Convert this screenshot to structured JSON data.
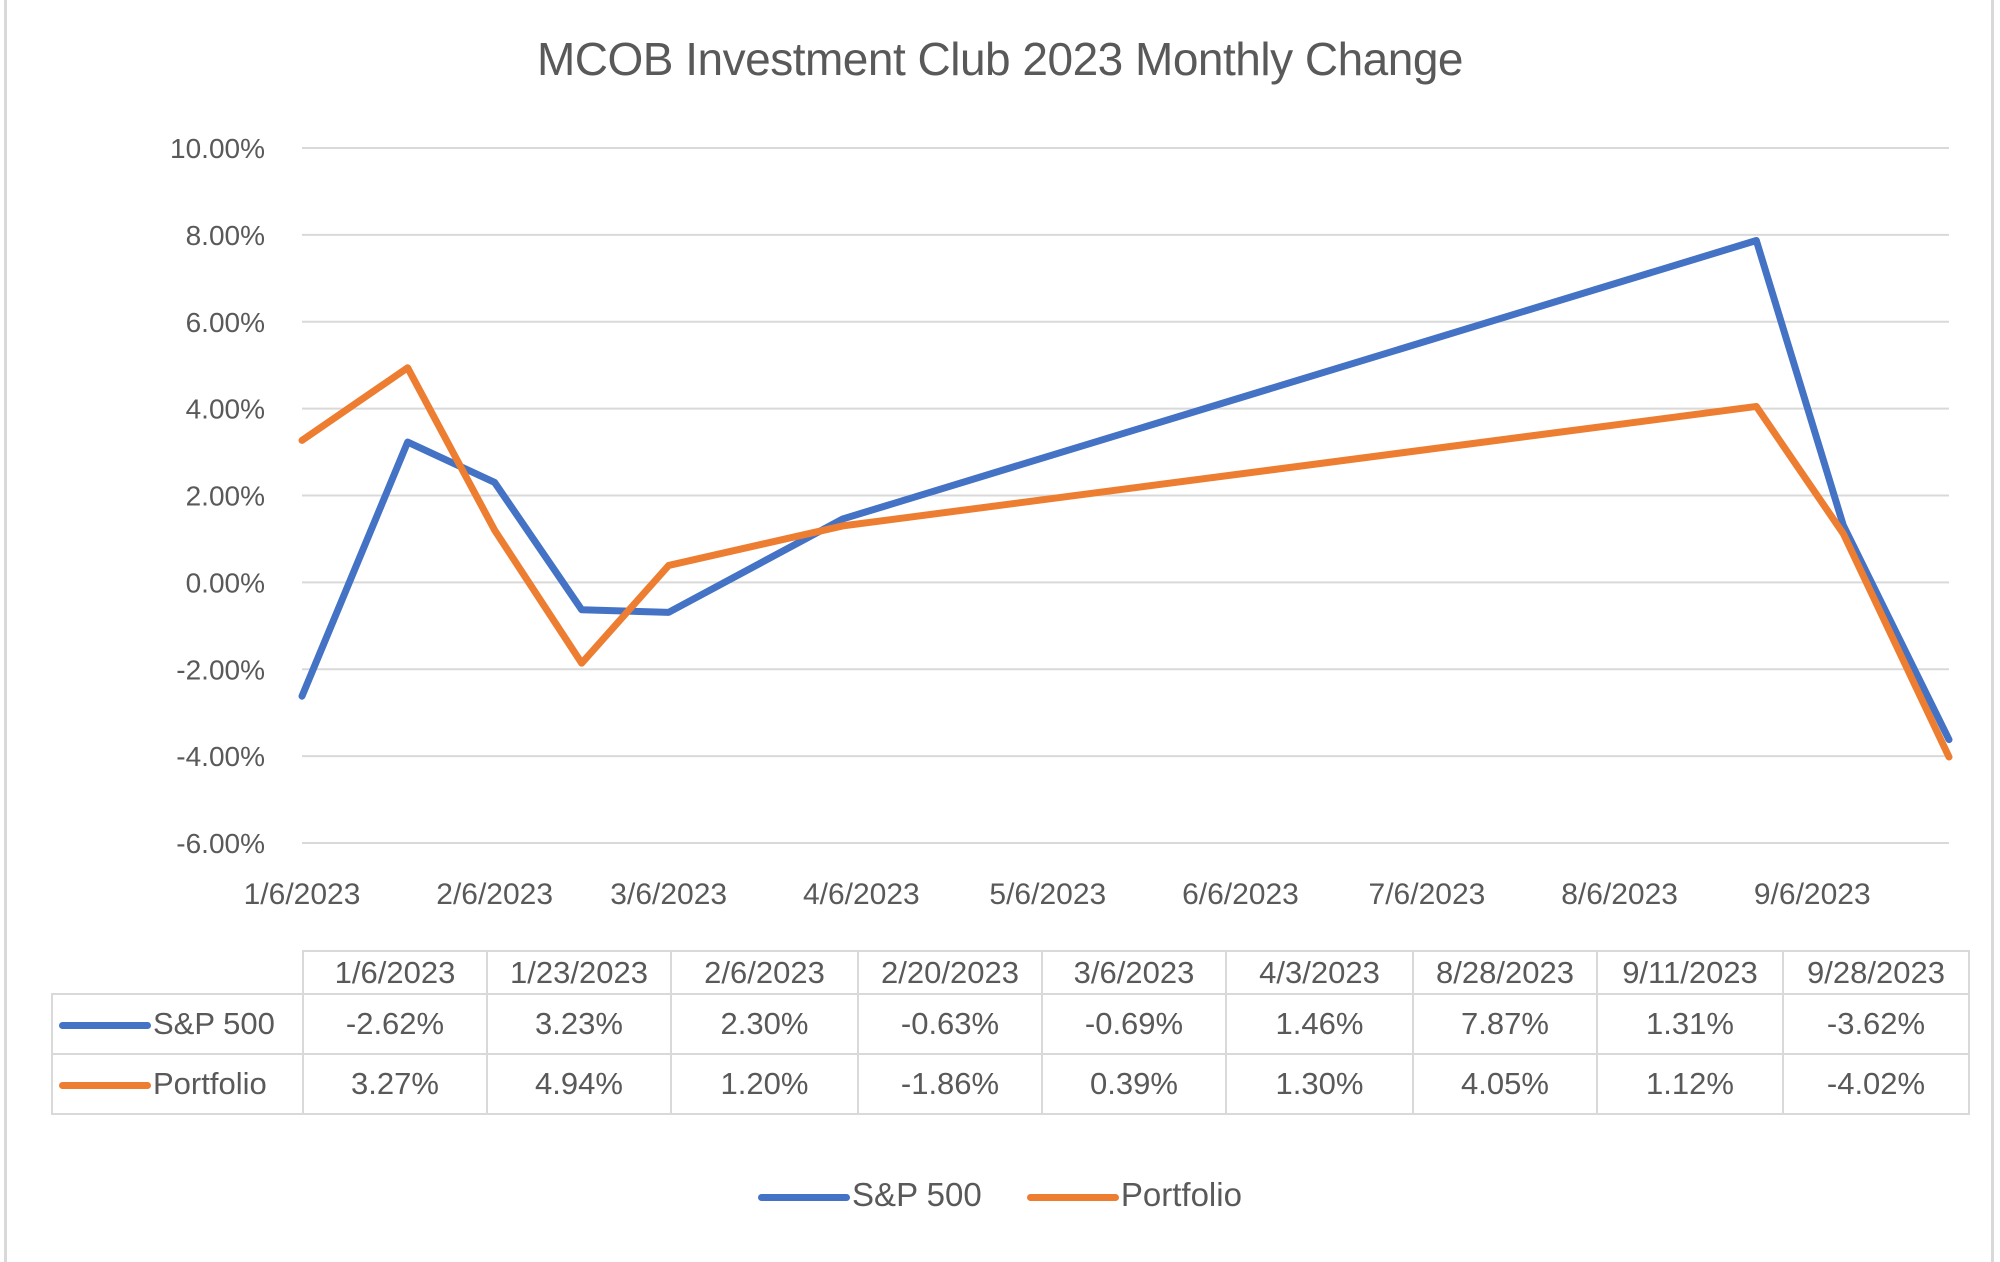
{
  "chart_data": {
    "type": "line",
    "title": "MCOB Investment Club 2023 Monthly Change",
    "xlabel": "",
    "ylabel": "",
    "x_axis_type": "date",
    "x": [
      "1/6/2023",
      "1/23/2023",
      "2/6/2023",
      "2/20/2023",
      "3/6/2023",
      "4/3/2023",
      "8/28/2023",
      "9/11/2023",
      "9/28/2023"
    ],
    "x_day_offsets": [
      0,
      17,
      31,
      45,
      59,
      87,
      234,
      248,
      265
    ],
    "x_tick_labels": [
      "1/6/2023",
      "2/6/2023",
      "3/6/2023",
      "4/6/2023",
      "5/6/2023",
      "6/6/2023",
      "7/6/2023",
      "8/6/2023",
      "9/6/2023"
    ],
    "x_tick_day_offsets": [
      0,
      31,
      59,
      90,
      120,
      151,
      181,
      212,
      243
    ],
    "x_range_days": [
      0,
      265
    ],
    "ylim": [
      -6,
      10
    ],
    "y_tick_values": [
      10,
      8,
      6,
      4,
      2,
      0,
      -2,
      -4,
      -6
    ],
    "y_tick_labels": [
      "10.00%",
      "8.00%",
      "6.00%",
      "4.00%",
      "2.00%",
      "0.00%",
      "-2.00%",
      "-4.00%",
      "-6.00%"
    ],
    "grid": true,
    "legend_position": "bottom",
    "series": [
      {
        "name": "S&P 500",
        "color": "#4472c4",
        "values": [
          -2.62,
          3.23,
          2.3,
          -0.63,
          -0.69,
          1.46,
          7.87,
          1.31,
          -3.62
        ],
        "labels": [
          "-2.62%",
          "3.23%",
          "2.30%",
          "-0.63%",
          "-0.69%",
          "1.46%",
          "7.87%",
          "1.31%",
          "-3.62%"
        ]
      },
      {
        "name": "Portfolio",
        "color": "#ed7d31",
        "values": [
          3.27,
          4.94,
          1.2,
          -1.86,
          0.39,
          1.3,
          4.05,
          1.12,
          -4.02
        ],
        "labels": [
          "3.27%",
          "4.94%",
          "1.20%",
          "-1.86%",
          "0.39%",
          "1.30%",
          "4.05%",
          "1.12%",
          "-4.02%"
        ]
      }
    ],
    "data_table": true
  }
}
